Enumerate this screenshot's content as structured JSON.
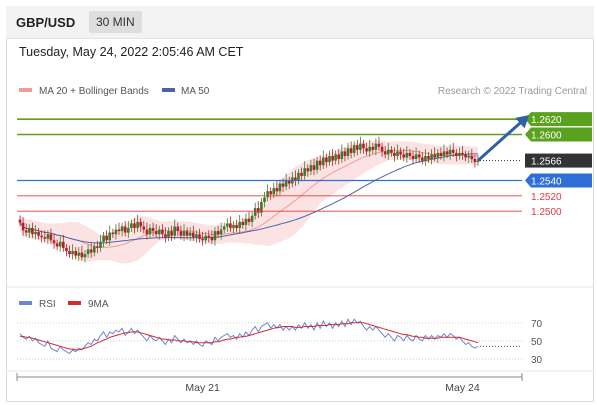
{
  "header": {
    "symbol": "GBP/USD",
    "timeframe": "30 MIN"
  },
  "timestamp": "Tuesday, May 24, 2022 2:05:46 AM CET",
  "legend": {
    "bollinger": "MA 20 + Bollinger Bands",
    "ma50": "MA 50",
    "credit": "Research © 2022 Trading Central",
    "rsi": "RSI",
    "ma9": "9MA"
  },
  "colors": {
    "resistance": "#5aa11d",
    "support": "#2f6fd6",
    "bearish_level": "#e63a3a",
    "current_price": "#333333",
    "bollinger": "#f29a9a",
    "ma50": "#4a64a8",
    "rsi": "#6b87d6",
    "rsi_ma": "#d42a2a",
    "candle_up": "#3d7a2a",
    "candle_down": "#b3202a"
  },
  "chart_data": [
    {
      "type": "candlestick",
      "y_range": [
        1.2405,
        1.2645
      ],
      "x_labels": [
        {
          "label": "May 21",
          "index": 59
        },
        {
          "label": "May 24",
          "index": 143
        }
      ],
      "levels": [
        {
          "value": 1.262,
          "label": "1.2620",
          "kind": "resistance"
        },
        {
          "value": 1.26,
          "label": "1.2600",
          "kind": "resistance"
        },
        {
          "value": 1.2566,
          "label": "1.2566",
          "kind": "current"
        },
        {
          "value": 1.254,
          "label": "1.2540",
          "kind": "support"
        },
        {
          "value": 1.252,
          "label": "1.2520",
          "kind": "target"
        },
        {
          "value": 1.25,
          "label": "1.2500",
          "kind": "target"
        }
      ],
      "forecast_arrow": {
        "from": {
          "index": 148,
          "value": 1.2566
        },
        "to": {
          "index": 163,
          "value": 1.262
        }
      },
      "closes": [
        1.2485,
        1.2475,
        1.2472,
        1.2478,
        1.247,
        1.2473,
        1.2468,
        1.2466,
        1.2464,
        1.247,
        1.2462,
        1.2458,
        1.2454,
        1.246,
        1.2452,
        1.2448,
        1.2444,
        1.2448,
        1.2442,
        1.2446,
        1.244,
        1.2444,
        1.245,
        1.2446,
        1.2454,
        1.2452,
        1.246,
        1.2468,
        1.2462,
        1.2472,
        1.247,
        1.2476,
        1.2474,
        1.248,
        1.2472,
        1.2478,
        1.2484,
        1.2478,
        1.2486,
        1.248,
        1.2476,
        1.247,
        1.2478,
        1.2474,
        1.247,
        1.2476,
        1.247,
        1.2466,
        1.2474,
        1.2468,
        1.248,
        1.2474,
        1.2468,
        1.2474,
        1.2468,
        1.2472,
        1.2466,
        1.247,
        1.2464,
        1.2462,
        1.2468,
        1.2466,
        1.2462,
        1.2474,
        1.247,
        1.2476,
        1.248,
        1.2484,
        1.2478,
        1.2482,
        1.2478,
        1.2486,
        1.2482,
        1.249,
        1.2486,
        1.2494,
        1.2504,
        1.2498,
        1.2512,
        1.2518,
        1.2526,
        1.2522,
        1.253,
        1.2526,
        1.2536,
        1.2532,
        1.254,
        1.2536,
        1.2544,
        1.254,
        1.255,
        1.2546,
        1.2556,
        1.2552,
        1.256,
        1.2554,
        1.2566,
        1.256,
        1.257,
        1.2564,
        1.2572,
        1.2566,
        1.2574,
        1.2568,
        1.2578,
        1.2572,
        1.2582,
        1.2576,
        1.2586,
        1.258,
        1.2588,
        1.2582,
        1.2578,
        1.2584,
        1.258,
        1.2588,
        1.2584,
        1.2578,
        1.2574,
        1.258,
        1.2576,
        1.2572,
        1.2578,
        1.2574,
        1.257,
        1.2576,
        1.2572,
        1.2568,
        1.2574,
        1.257,
        1.2566,
        1.2572,
        1.2568,
        1.2574,
        1.257,
        1.2576,
        1.2572,
        1.2578,
        1.2574,
        1.258,
        1.2576,
        1.2572,
        1.2576,
        1.2574,
        1.257,
        1.2572,
        1.2568,
        1.2564,
        1.2566
      ],
      "series": [
        {
          "name": "MA 20 + Bollinger Bands"
        },
        {
          "name": "MA 50"
        }
      ]
    },
    {
      "type": "line",
      "y_range": [
        20,
        82
      ],
      "y_ticks": [
        70,
        50,
        30
      ],
      "series": [
        {
          "name": "RSI",
          "values": [
            58,
            54,
            52,
            55,
            50,
            53,
            48,
            46,
            44,
            50,
            42,
            40,
            38,
            44,
            40,
            38,
            36,
            40,
            38,
            42,
            40,
            44,
            48,
            46,
            52,
            50,
            56,
            60,
            54,
            60,
            58,
            62,
            60,
            64,
            56,
            60,
            64,
            58,
            62,
            58,
            54,
            50,
            56,
            52,
            50,
            54,
            50,
            46,
            52,
            48,
            56,
            52,
            48,
            52,
            48,
            50,
            46,
            50,
            46,
            44,
            50,
            48,
            46,
            54,
            50,
            54,
            56,
            58,
            54,
            56,
            52,
            58,
            54,
            60,
            56,
            62,
            66,
            60,
            66,
            68,
            70,
            64,
            68,
            64,
            68,
            62,
            66,
            62,
            66,
            62,
            68,
            64,
            70,
            64,
            68,
            62,
            70,
            64,
            72,
            66,
            70,
            64,
            70,
            66,
            72,
            66,
            74,
            68,
            74,
            70,
            72,
            66,
            62,
            66,
            62,
            66,
            62,
            58,
            54,
            58,
            54,
            50,
            56,
            54,
            50,
            56,
            52,
            50,
            56,
            52,
            50,
            56,
            52,
            56,
            52,
            56,
            54,
            58,
            54,
            58,
            56,
            52,
            54,
            50,
            46,
            48,
            44,
            42,
            44
          ]
        },
        {
          "name": "9MA",
          "values": [
            55,
            55,
            54,
            54,
            53,
            52,
            51,
            50,
            49,
            48,
            47,
            46,
            45,
            44,
            43,
            42,
            41,
            41,
            40,
            40,
            41,
            42,
            43,
            44,
            46,
            48,
            49,
            51,
            52,
            54,
            55,
            56,
            57,
            58,
            59,
            59,
            60,
            60,
            60,
            59,
            58,
            57,
            56,
            55,
            54,
            53,
            52,
            52,
            51,
            51,
            51,
            50,
            50,
            50,
            49,
            49,
            49,
            48,
            48,
            48,
            48,
            48,
            48,
            49,
            49,
            50,
            51,
            52,
            52,
            53,
            54,
            54,
            55,
            55,
            56,
            57,
            58,
            59,
            60,
            61,
            62,
            63,
            64,
            65,
            65,
            66,
            66,
            66,
            66,
            65,
            65,
            65,
            66,
            66,
            66,
            66,
            67,
            67,
            67,
            67,
            68,
            68,
            68,
            68,
            69,
            69,
            69,
            70,
            70,
            70,
            70,
            70,
            69,
            68,
            67,
            66,
            65,
            64,
            63,
            62,
            61,
            60,
            59,
            58,
            57,
            57,
            56,
            55,
            55,
            54,
            54,
            53,
            53,
            53,
            53,
            53,
            54,
            54,
            54,
            54,
            54,
            54,
            54,
            53,
            52,
            51,
            50,
            49,
            48
          ]
        }
      ]
    }
  ]
}
